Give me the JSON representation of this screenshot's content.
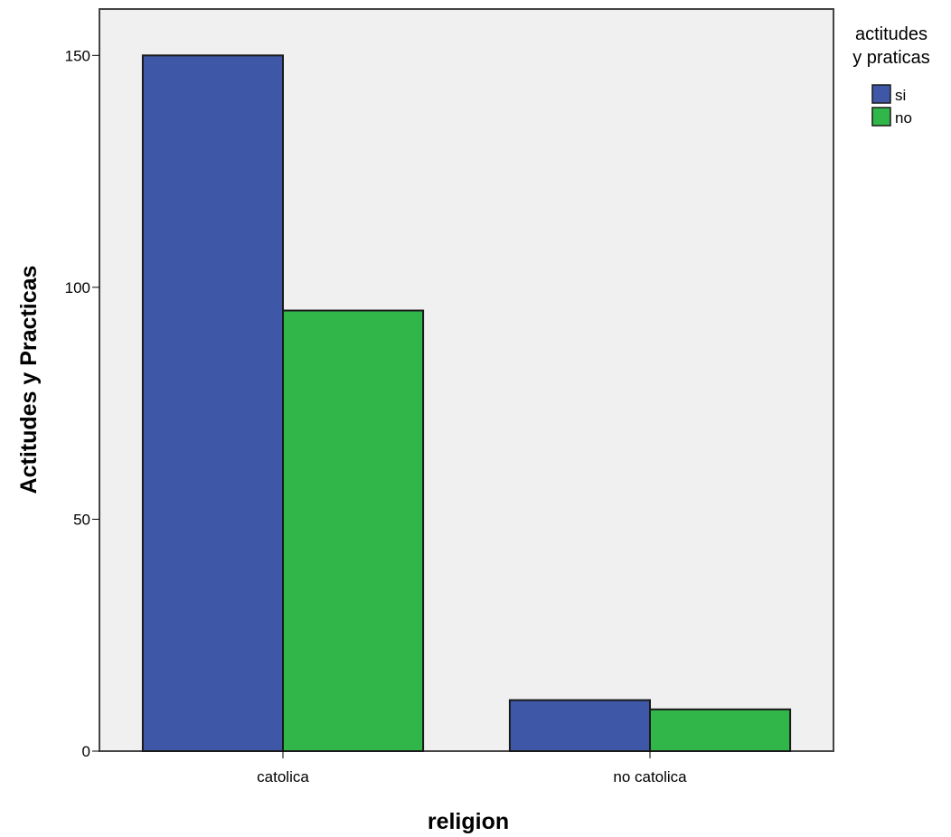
{
  "chart_data": {
    "type": "bar",
    "title": "",
    "xlabel": "religion",
    "ylabel": "Actitudes y Practicas",
    "categories": [
      "catolica",
      "no catolica"
    ],
    "series": [
      {
        "name": "si",
        "values": [
          150,
          11
        ],
        "color": "#3f57a7"
      },
      {
        "name": "no",
        "values": [
          95,
          9
        ],
        "color": "#31b64a"
      }
    ],
    "ylim": [
      0,
      160
    ],
    "yticks": [
      0,
      50,
      100,
      150
    ],
    "grid": false,
    "plot_background": "#f0f0f0",
    "legend": {
      "title_lines": [
        "actitudes",
        "y praticas"
      ],
      "placement": "right-top"
    }
  }
}
